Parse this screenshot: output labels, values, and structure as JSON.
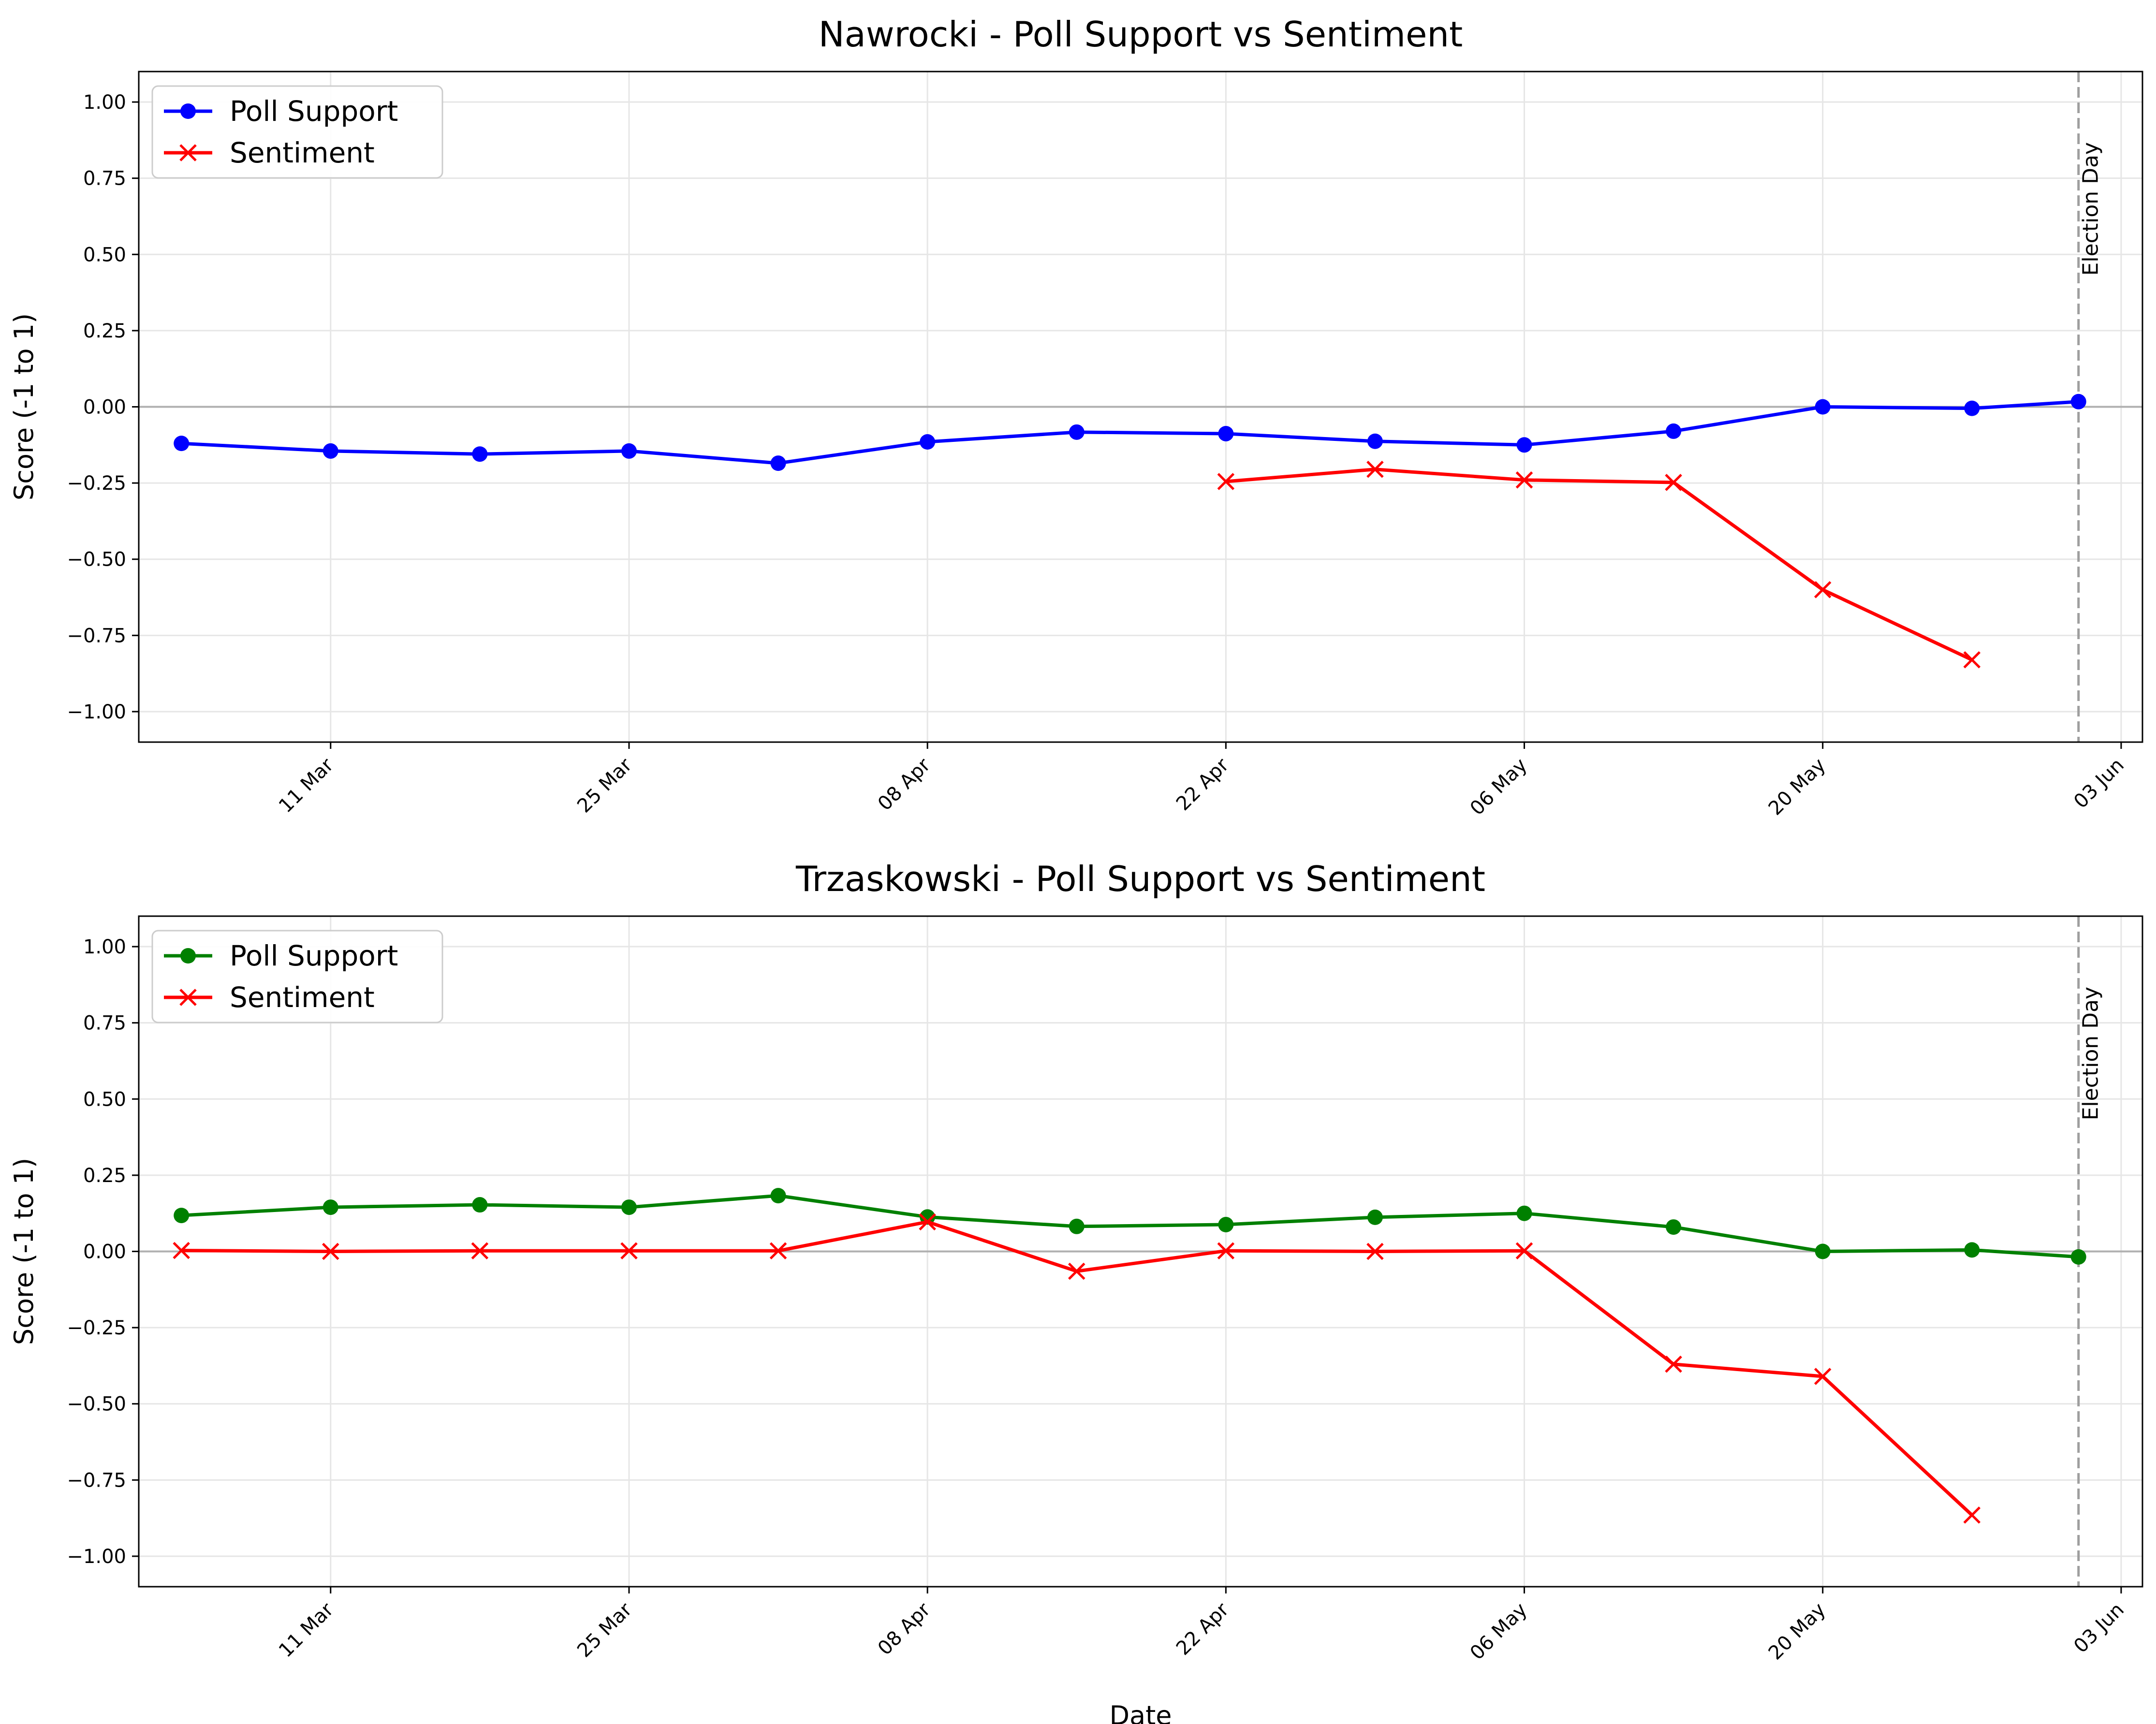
{
  "chart_data": [
    {
      "type": "line",
      "title": "Nawrocki - Poll Support vs Sentiment",
      "xlabel": "",
      "ylabel": "Score (-1 to 1)",
      "ylim": [
        -1.1,
        1.1
      ],
      "xlim": [
        "2025-03-02",
        "2025-06-04"
      ],
      "grid": true,
      "legend": "upper-left",
      "yticks": [
        -1.0,
        -0.75,
        -0.5,
        -0.25,
        0.0,
        0.25,
        0.5,
        0.75,
        1.0
      ],
      "ytick_labels": [
        "−1.00",
        "−0.75",
        "−0.50",
        "−0.25",
        "0.00",
        "0.25",
        "0.50",
        "0.75",
        "1.00"
      ],
      "xticks": [
        "2025-03-11",
        "2025-03-25",
        "2025-04-08",
        "2025-04-22",
        "2025-05-06",
        "2025-05-20",
        "2025-06-03"
      ],
      "xtick_labels": [
        "11 Mar",
        "25 Mar",
        "08 Apr",
        "22 Apr",
        "06 May",
        "20 May",
        "03 Jun"
      ],
      "annotation": {
        "date": "2025-06-01",
        "label": "Election Day"
      },
      "series": [
        {
          "name": "Poll Support",
          "color": "#0000ff",
          "marker": "circle",
          "points": [
            [
              "2025-03-04",
              -0.12
            ],
            [
              "2025-03-11",
              -0.145
            ],
            [
              "2025-03-18",
              -0.155
            ],
            [
              "2025-03-25",
              -0.145
            ],
            [
              "2025-04-01",
              -0.185
            ],
            [
              "2025-04-08",
              -0.115
            ],
            [
              "2025-04-15",
              -0.083
            ],
            [
              "2025-04-22",
              -0.088
            ],
            [
              "2025-04-29",
              -0.113
            ],
            [
              "2025-05-06",
              -0.125
            ],
            [
              "2025-05-13",
              -0.08
            ],
            [
              "2025-05-20",
              0.0
            ],
            [
              "2025-05-27",
              -0.005
            ],
            [
              "2025-06-01",
              0.017
            ]
          ]
        },
        {
          "name": "Sentiment",
          "color": "#ff0000",
          "marker": "x",
          "points": [
            [
              "2025-04-22",
              -0.245
            ],
            [
              "2025-04-29",
              -0.205
            ],
            [
              "2025-05-06",
              -0.24
            ],
            [
              "2025-05-13",
              -0.248
            ],
            [
              "2025-05-20",
              -0.6
            ],
            [
              "2025-05-27",
              -0.83
            ]
          ]
        }
      ]
    },
    {
      "type": "line",
      "title": "Trzaskowski - Poll Support vs Sentiment",
      "xlabel": "Date",
      "ylabel": "Score (-1 to 1)",
      "ylim": [
        -1.1,
        1.1
      ],
      "xlim": [
        "2025-03-02",
        "2025-06-04"
      ],
      "grid": true,
      "legend": "upper-left",
      "yticks": [
        -1.0,
        -0.75,
        -0.5,
        -0.25,
        0.0,
        0.25,
        0.5,
        0.75,
        1.0
      ],
      "ytick_labels": [
        "−1.00",
        "−0.75",
        "−0.50",
        "−0.25",
        "0.00",
        "0.25",
        "0.50",
        "0.75",
        "1.00"
      ],
      "xticks": [
        "2025-03-11",
        "2025-03-25",
        "2025-04-08",
        "2025-04-22",
        "2025-05-06",
        "2025-05-20",
        "2025-06-03"
      ],
      "xtick_labels": [
        "11 Mar",
        "25 Mar",
        "08 Apr",
        "22 Apr",
        "06 May",
        "20 May",
        "03 Jun"
      ],
      "annotation": {
        "date": "2025-06-01",
        "label": "Election Day"
      },
      "series": [
        {
          "name": "Poll Support",
          "color": "#008000",
          "marker": "circle",
          "points": [
            [
              "2025-03-04",
              0.118
            ],
            [
              "2025-03-11",
              0.145
            ],
            [
              "2025-03-18",
              0.153
            ],
            [
              "2025-03-25",
              0.145
            ],
            [
              "2025-04-01",
              0.183
            ],
            [
              "2025-04-08",
              0.113
            ],
            [
              "2025-04-15",
              0.082
            ],
            [
              "2025-04-22",
              0.088
            ],
            [
              "2025-04-29",
              0.112
            ],
            [
              "2025-05-06",
              0.125
            ],
            [
              "2025-05-13",
              0.08
            ],
            [
              "2025-05-20",
              0.0
            ],
            [
              "2025-05-27",
              0.005
            ],
            [
              "2025-06-01",
              -0.018
            ]
          ]
        },
        {
          "name": "Sentiment",
          "color": "#ff0000",
          "marker": "x",
          "points": [
            [
              "2025-03-04",
              0.003
            ],
            [
              "2025-03-11",
              0.0
            ],
            [
              "2025-03-18",
              0.002
            ],
            [
              "2025-03-25",
              0.002
            ],
            [
              "2025-04-01",
              0.002
            ],
            [
              "2025-04-08",
              0.097
            ],
            [
              "2025-04-15",
              -0.065
            ],
            [
              "2025-04-22",
              0.002
            ],
            [
              "2025-04-29",
              0.0
            ],
            [
              "2025-05-06",
              0.002
            ],
            [
              "2025-05-13",
              -0.37
            ],
            [
              "2025-05-20",
              -0.41
            ],
            [
              "2025-05-27",
              -0.865
            ]
          ]
        }
      ]
    }
  ]
}
